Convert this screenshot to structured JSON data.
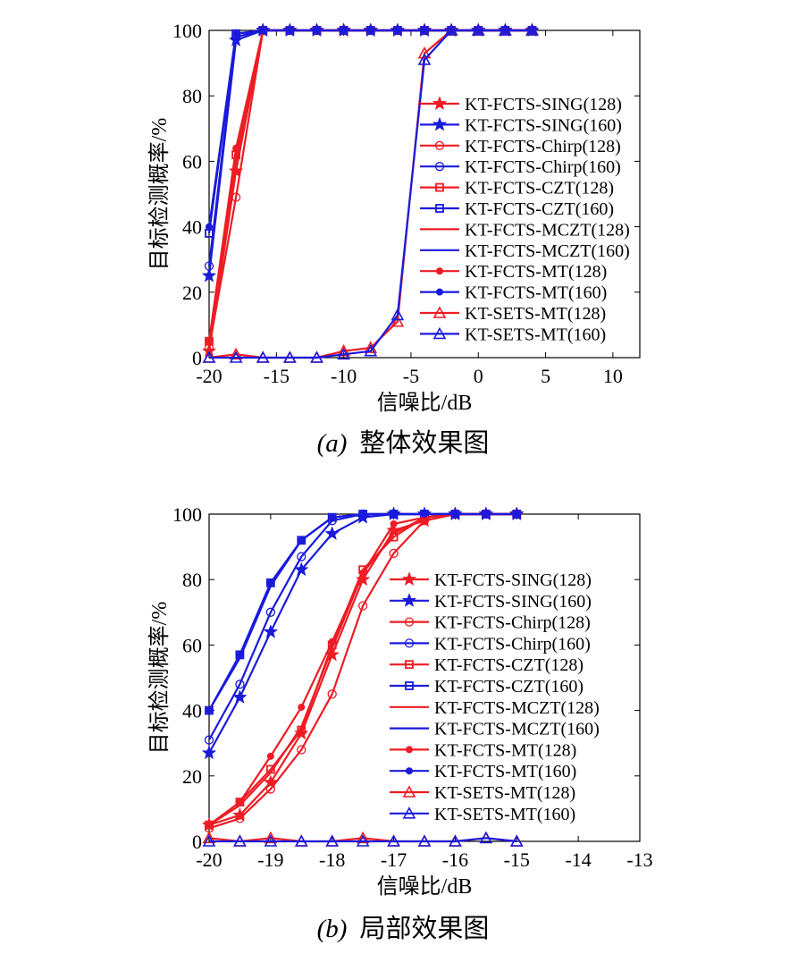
{
  "colors": {
    "red": "#ee1c24",
    "blue": "#1a1adc",
    "axis": "#000000"
  },
  "markers": {
    "KT-FCTS-SING": "star",
    "KT-FCTS-Chirp": "circle",
    "KT-FCTS-CZT": "square",
    "KT-FCTS-MCZT": "none",
    "KT-FCTS-MT": "dot",
    "KT-SETS-MT": "triangle"
  },
  "chart_data": [
    {
      "type": "line",
      "caption_label": "(a)",
      "caption_text": "整体效果图",
      "xlabel": "信噪比/dB",
      "ylabel": "目标检测概率/%",
      "xlim": [
        -20,
        12
      ],
      "ylim": [
        0,
        100
      ],
      "xticks": [
        -20,
        -15,
        -10,
        -5,
        0,
        5,
        10
      ],
      "yticks": [
        0,
        20,
        40,
        60,
        80,
        100
      ],
      "legend_position": "right",
      "series": [
        {
          "name": "KT-FCTS-SING(128)",
          "color": "red",
          "marker": "star",
          "x": [
            -20,
            -18,
            -16,
            -14,
            -12,
            -10,
            -8,
            -6,
            -4,
            -2,
            0,
            2,
            4
          ],
          "y": [
            2,
            57,
            100,
            100,
            100,
            100,
            100,
            100,
            100,
            100,
            100,
            100,
            100
          ]
        },
        {
          "name": "KT-FCTS-SING(160)",
          "color": "blue",
          "marker": "star",
          "x": [
            -20,
            -18,
            -16,
            -14,
            -12,
            -10,
            -8,
            -6,
            -4,
            -2,
            0,
            2,
            4
          ],
          "y": [
            25,
            97,
            100,
            100,
            100,
            100,
            100,
            100,
            100,
            100,
            100,
            100,
            100
          ]
        },
        {
          "name": "KT-FCTS-Chirp(128)",
          "color": "red",
          "marker": "circle",
          "x": [
            -20,
            -18,
            -16,
            -14,
            -12,
            -10,
            -8,
            -6,
            -4,
            -2,
            0,
            2,
            4
          ],
          "y": [
            3,
            49,
            100,
            100,
            100,
            100,
            100,
            100,
            100,
            100,
            100,
            100,
            100
          ]
        },
        {
          "name": "KT-FCTS-Chirp(160)",
          "color": "blue",
          "marker": "circle",
          "x": [
            -20,
            -18,
            -16,
            -14,
            -12,
            -10,
            -8,
            -6,
            -4,
            -2,
            0,
            2,
            4
          ],
          "y": [
            28,
            98,
            100,
            100,
            100,
            100,
            100,
            100,
            100,
            100,
            100,
            100,
            100
          ]
        },
        {
          "name": "KT-FCTS-CZT(128)",
          "color": "red",
          "marker": "square",
          "x": [
            -20,
            -18,
            -16,
            -14,
            -12,
            -10,
            -8,
            -6,
            -4,
            -2,
            0,
            2,
            4
          ],
          "y": [
            5,
            62,
            100,
            100,
            100,
            100,
            100,
            100,
            100,
            100,
            100,
            100,
            100
          ]
        },
        {
          "name": "KT-FCTS-CZT(160)",
          "color": "blue",
          "marker": "square",
          "x": [
            -20,
            -18,
            -16,
            -14,
            -12,
            -10,
            -8,
            -6,
            -4,
            -2,
            0,
            2,
            4
          ],
          "y": [
            38,
            99,
            100,
            100,
            100,
            100,
            100,
            100,
            100,
            100,
            100,
            100,
            100
          ]
        },
        {
          "name": "KT-FCTS-MCZT(128)",
          "color": "red",
          "marker": "none",
          "x": [
            -20,
            -18,
            -16,
            -14,
            -12,
            -10,
            -8,
            -6,
            -4,
            -2,
            0,
            2,
            4
          ],
          "y": [
            4,
            60,
            100,
            100,
            100,
            100,
            100,
            100,
            100,
            100,
            100,
            100,
            100
          ]
        },
        {
          "name": "KT-FCTS-MCZT(160)",
          "color": "blue",
          "marker": "none",
          "x": [
            -20,
            -18,
            -16,
            -14,
            -12,
            -10,
            -8,
            -6,
            -4,
            -2,
            0,
            2,
            4
          ],
          "y": [
            39,
            99,
            100,
            100,
            100,
            100,
            100,
            100,
            100,
            100,
            100,
            100,
            100
          ]
        },
        {
          "name": "KT-FCTS-MT(128)",
          "color": "red",
          "marker": "dot",
          "x": [
            -20,
            -18,
            -16,
            -14,
            -12,
            -10,
            -8,
            -6,
            -4,
            -2,
            0,
            2,
            4
          ],
          "y": [
            5,
            64,
            100,
            100,
            100,
            100,
            100,
            100,
            100,
            100,
            100,
            100,
            100
          ]
        },
        {
          "name": "KT-FCTS-MT(160)",
          "color": "blue",
          "marker": "dot",
          "x": [
            -20,
            -18,
            -16,
            -14,
            -12,
            -10,
            -8,
            -6,
            -4,
            -2,
            0,
            2,
            4
          ],
          "y": [
            40,
            99,
            100,
            100,
            100,
            100,
            100,
            100,
            100,
            100,
            100,
            100,
            100
          ]
        },
        {
          "name": "KT-SETS-MT(128)",
          "color": "red",
          "marker": "triangle",
          "x": [
            -20,
            -18,
            -16,
            -14,
            -12,
            -10,
            -8,
            -6,
            -4,
            -2,
            0,
            2,
            4
          ],
          "y": [
            0,
            1,
            0,
            0,
            0,
            2,
            3,
            11,
            93,
            100,
            100,
            100,
            100
          ]
        },
        {
          "name": "KT-SETS-MT(160)",
          "color": "blue",
          "marker": "triangle",
          "x": [
            -20,
            -18,
            -16,
            -14,
            -12,
            -10,
            -8,
            -6,
            -4,
            -2,
            0,
            2,
            4
          ],
          "y": [
            0,
            0,
            0,
            0,
            0,
            1,
            2,
            13,
            91,
            100,
            100,
            100,
            100
          ]
        }
      ]
    },
    {
      "type": "line",
      "caption_label": "(b)",
      "caption_text": "局部效果图",
      "xlabel": "信噪比/dB",
      "ylabel": "目标检测概率/%",
      "xlim": [
        -20,
        -13
      ],
      "ylim": [
        0,
        100
      ],
      "xticks": [
        -20,
        -19,
        -18,
        -17,
        -16,
        -15,
        -14,
        -13
      ],
      "yticks": [
        0,
        20,
        40,
        60,
        80,
        100
      ],
      "legend_position": "right",
      "series": [
        {
          "name": "KT-FCTS-SING(128)",
          "color": "red",
          "marker": "star",
          "x": [
            -20,
            -19.5,
            -19,
            -18.5,
            -18,
            -17.5,
            -17,
            -16.5,
            -16,
            -15.5,
            -15
          ],
          "y": [
            5,
            8,
            18,
            33,
            57,
            80,
            95,
            98,
            100,
            100,
            100
          ]
        },
        {
          "name": "KT-FCTS-SING(160)",
          "color": "blue",
          "marker": "star",
          "x": [
            -20,
            -19.5,
            -19,
            -18.5,
            -18,
            -17.5,
            -17,
            -16.5,
            -16,
            -15.5,
            -15
          ],
          "y": [
            27,
            44,
            64,
            83,
            94,
            99,
            100,
            100,
            100,
            100,
            100
          ]
        },
        {
          "name": "KT-FCTS-Chirp(128)",
          "color": "red",
          "marker": "circle",
          "x": [
            -20,
            -19.5,
            -19,
            -18.5,
            -18,
            -17.5,
            -17,
            -16.5,
            -16,
            -15.5,
            -15
          ],
          "y": [
            4,
            7,
            16,
            28,
            45,
            72,
            88,
            98,
            100,
            100,
            100
          ]
        },
        {
          "name": "KT-FCTS-Chirp(160)",
          "color": "blue",
          "marker": "circle",
          "x": [
            -20,
            -19.5,
            -19,
            -18.5,
            -18,
            -17.5,
            -17,
            -16.5,
            -16,
            -15.5,
            -15
          ],
          "y": [
            31,
            48,
            70,
            87,
            98,
            100,
            100,
            100,
            100,
            100,
            100
          ]
        },
        {
          "name": "KT-FCTS-CZT(128)",
          "color": "red",
          "marker": "square",
          "x": [
            -20,
            -19.5,
            -19,
            -18.5,
            -18,
            -17.5,
            -17,
            -16.5,
            -16,
            -15.5,
            -15
          ],
          "y": [
            5,
            12,
            22,
            34,
            60,
            83,
            93,
            99,
            100,
            100,
            100
          ]
        },
        {
          "name": "KT-FCTS-CZT(160)",
          "color": "blue",
          "marker": "square",
          "x": [
            -20,
            -19.5,
            -19,
            -18.5,
            -18,
            -17.5,
            -17,
            -16.5,
            -16,
            -15.5,
            -15
          ],
          "y": [
            40,
            57,
            79,
            92,
            99,
            100,
            100,
            100,
            100,
            100,
            100
          ]
        },
        {
          "name": "KT-FCTS-MCZT(128)",
          "color": "red",
          "marker": "none",
          "x": [
            -20,
            -19.5,
            -19,
            -18.5,
            -18,
            -17.5,
            -17,
            -16.5,
            -16,
            -15.5,
            -15
          ],
          "y": [
            5,
            11,
            21,
            35,
            59,
            82,
            94,
            99,
            100,
            100,
            100
          ]
        },
        {
          "name": "KT-FCTS-MCZT(160)",
          "color": "blue",
          "marker": "none",
          "x": [
            -20,
            -19.5,
            -19,
            -18.5,
            -18,
            -17.5,
            -17,
            -16.5,
            -16,
            -15.5,
            -15
          ],
          "y": [
            40,
            56,
            78,
            92,
            99,
            100,
            100,
            100,
            100,
            100,
            100
          ]
        },
        {
          "name": "KT-FCTS-MT(128)",
          "color": "red",
          "marker": "dot",
          "x": [
            -20,
            -19.5,
            -19,
            -18.5,
            -18,
            -17.5,
            -17,
            -16.5,
            -16,
            -15.5,
            -15
          ],
          "y": [
            5,
            12,
            26,
            41,
            61,
            82,
            97,
            99,
            100,
            100,
            100
          ]
        },
        {
          "name": "KT-FCTS-MT(160)",
          "color": "blue",
          "marker": "dot",
          "x": [
            -20,
            -19.5,
            -19,
            -18.5,
            -18,
            -17.5,
            -17,
            -16.5,
            -16,
            -15.5,
            -15
          ],
          "y": [
            40,
            57,
            79,
            92,
            99,
            100,
            100,
            100,
            100,
            100,
            100
          ]
        },
        {
          "name": "KT-SETS-MT(128)",
          "color": "red",
          "marker": "triangle",
          "x": [
            -20,
            -19.5,
            -19,
            -18.5,
            -18,
            -17.5,
            -17,
            -16.5,
            -16,
            -15.5,
            -15
          ],
          "y": [
            1,
            0,
            1,
            0,
            0,
            1,
            0,
            0,
            0,
            1,
            0
          ]
        },
        {
          "name": "KT-SETS-MT(160)",
          "color": "blue",
          "marker": "triangle",
          "x": [
            -20,
            -19.5,
            -19,
            -18.5,
            -18,
            -17.5,
            -17,
            -16.5,
            -16,
            -15.5,
            -15
          ],
          "y": [
            0,
            0,
            0,
            0,
            0,
            0,
            0,
            0,
            0,
            1,
            0
          ]
        }
      ]
    }
  ]
}
